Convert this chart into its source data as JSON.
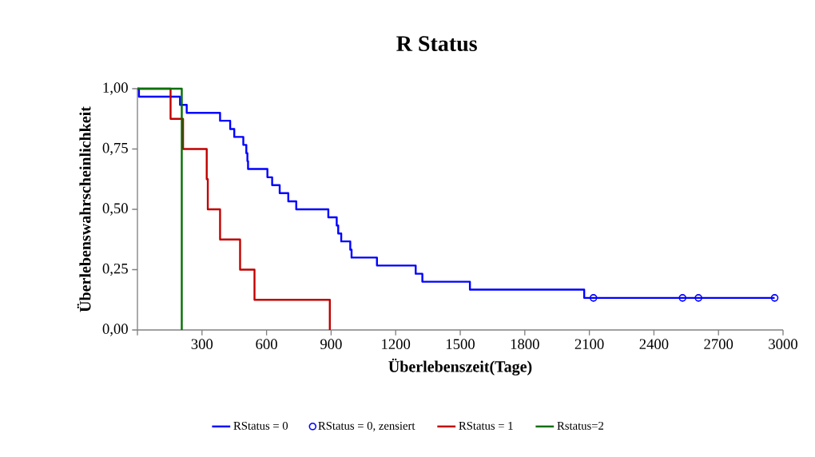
{
  "chart_data": {
    "type": "step",
    "title": "R Status",
    "xlabel": "Überlebenszeit(Tage)",
    "ylabel": "Überlebenswahrscheinlichkeit",
    "xlim": [
      0,
      3000
    ],
    "ylim": [
      0,
      1
    ],
    "xticks": [
      {
        "value": 0,
        "label": null
      },
      300,
      600,
      900,
      1200,
      1500,
      1800,
      2100,
      2400,
      2700,
      3000
    ],
    "yticks": [
      {
        "value": 0,
        "label": "0,00"
      },
      {
        "value": 0.25,
        "label": "0,25"
      },
      {
        "value": 0.5,
        "label": "0,50"
      },
      {
        "value": 0.75,
        "label": "0,75"
      },
      {
        "value": 1,
        "label": "1,00"
      }
    ],
    "grid": false,
    "legend": "bottom",
    "series": [
      {
        "name": "RStatus = 0",
        "color": "#0000ff",
        "x": [
          0,
          7,
          198,
          229,
          384,
          431,
          450,
          492,
          506,
          511,
          514,
          604,
          626,
          661,
          701,
          738,
          887,
          926,
          933,
          947,
          989,
          995,
          1113,
          1293,
          1324,
          1545,
          2076,
          2961
        ],
        "values": [
          1,
          0.967,
          0.933,
          0.9,
          0.867,
          0.833,
          0.8,
          0.767,
          0.733,
          0.7,
          0.667,
          0.633,
          0.6,
          0.567,
          0.533,
          0.5,
          0.467,
          0.433,
          0.4,
          0.367,
          0.333,
          0.3,
          0.267,
          0.233,
          0.2,
          0.167,
          0.133,
          0.133
        ]
      },
      {
        "name": "RStatus = 0, zensiert",
        "type": "scatter",
        "marker": "circle",
        "color": "#0000ff",
        "x": [
          2119,
          2533,
          2607,
          2961
        ],
        "values": [
          0.133,
          0.133,
          0.133,
          0.133
        ]
      },
      {
        "name": "RStatus = 1",
        "color": "#c00000",
        "x": [
          0,
          154,
          212,
          322,
          327,
          384,
          477,
          544,
          894
        ],
        "values": [
          1,
          0.875,
          0.75,
          0.625,
          0.5,
          0.375,
          0.25,
          0.125,
          0
        ]
      },
      {
        "name": "Rstatus=2",
        "color": "#007000",
        "x": [
          0,
          206
        ],
        "values": [
          1,
          0
        ]
      }
    ]
  }
}
